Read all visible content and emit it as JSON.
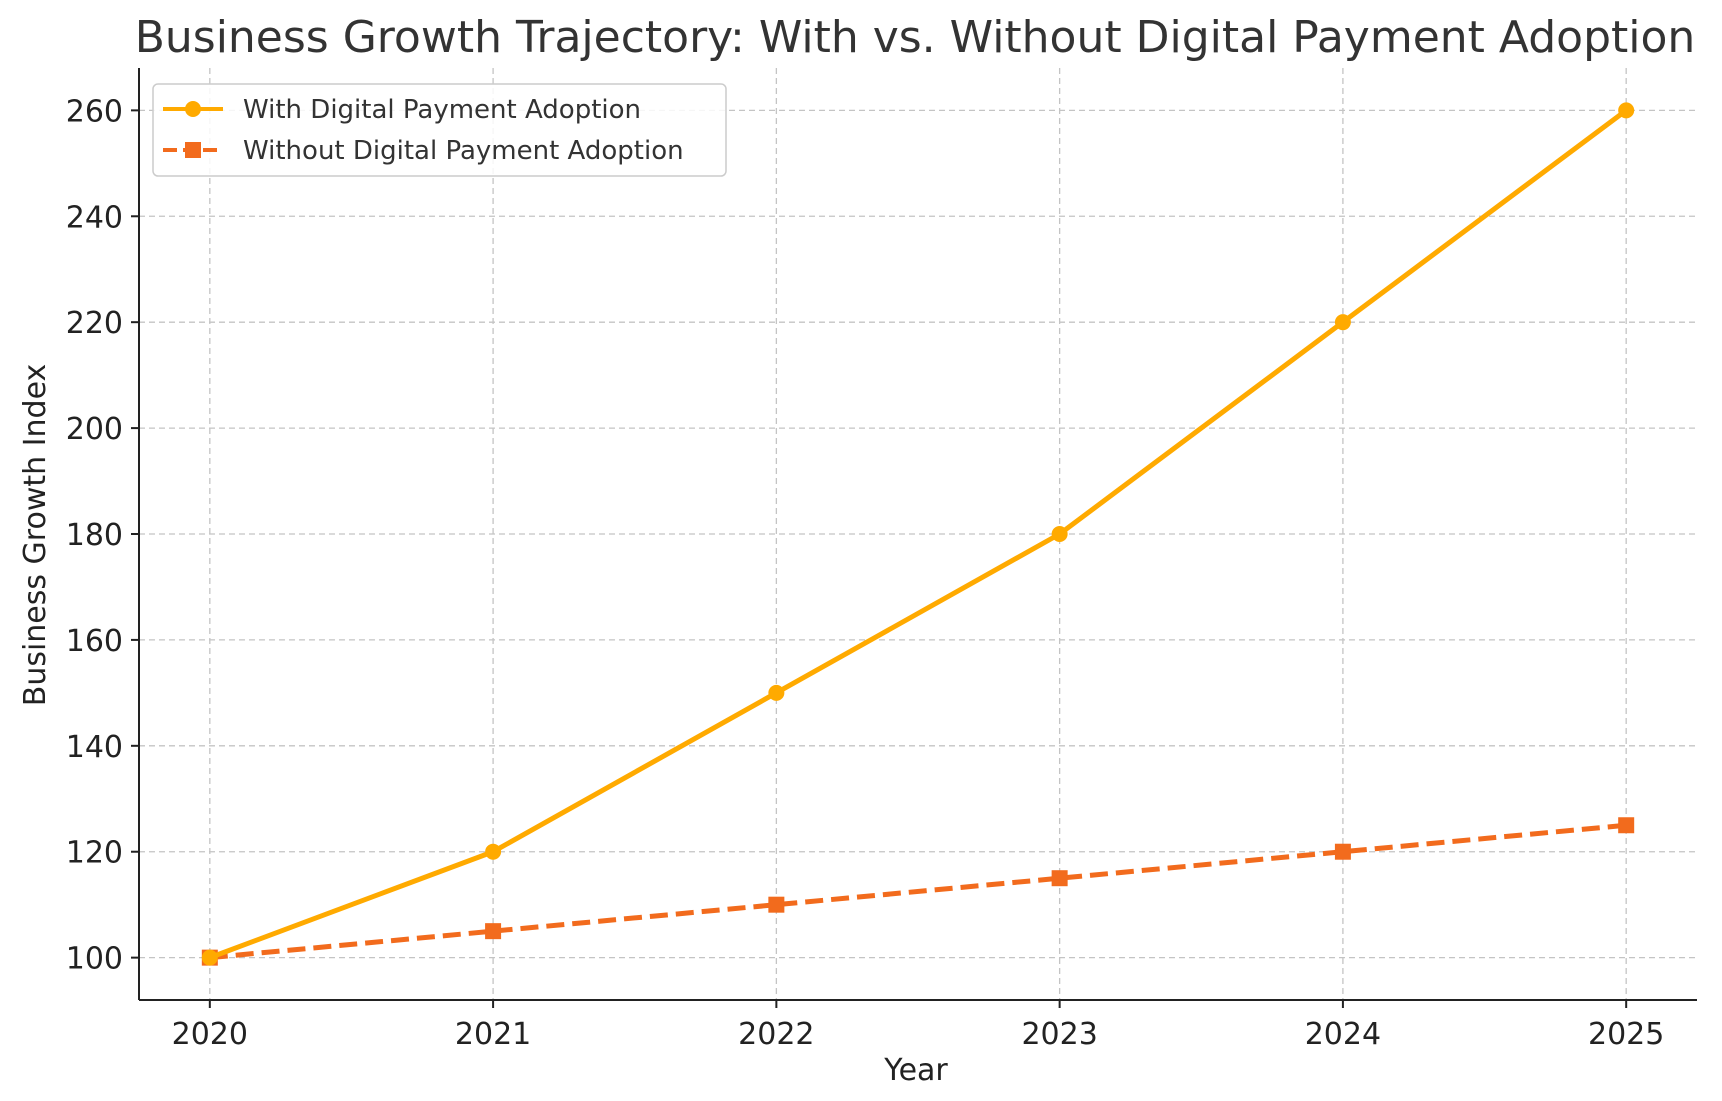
{
  "chart_data": {
    "type": "line",
    "title": "Business Growth Trajectory: With vs. Without Digital Payment Adoption",
    "xlabel": "Year",
    "ylabel": "Business Growth Index",
    "x": [
      2020,
      2021,
      2022,
      2023,
      2024,
      2025
    ],
    "x_tick_labels": [
      "2020",
      "2021",
      "2022",
      "2023",
      "2024",
      "2025"
    ],
    "y_ticks": [
      100,
      120,
      140,
      160,
      180,
      200,
      220,
      240,
      260
    ],
    "y_tick_labels": [
      "100",
      "120",
      "140",
      "160",
      "180",
      "200",
      "220",
      "240",
      "260"
    ],
    "xlim": [
      2019.75,
      2025.25
    ],
    "ylim": [
      92,
      268
    ],
    "grid": true,
    "legend_position": "top-left",
    "series": [
      {
        "name": "With Digital Payment Adoption",
        "values": [
          100,
          120,
          150,
          180,
          220,
          260
        ],
        "color": "#FFAA00",
        "marker": "circle",
        "line_style": "solid"
      },
      {
        "name": "Without Digital Payment Adoption",
        "values": [
          100,
          105,
          110,
          115,
          120,
          125
        ],
        "color": "#F26B1D",
        "marker": "square",
        "line_style": "dashed"
      }
    ]
  }
}
